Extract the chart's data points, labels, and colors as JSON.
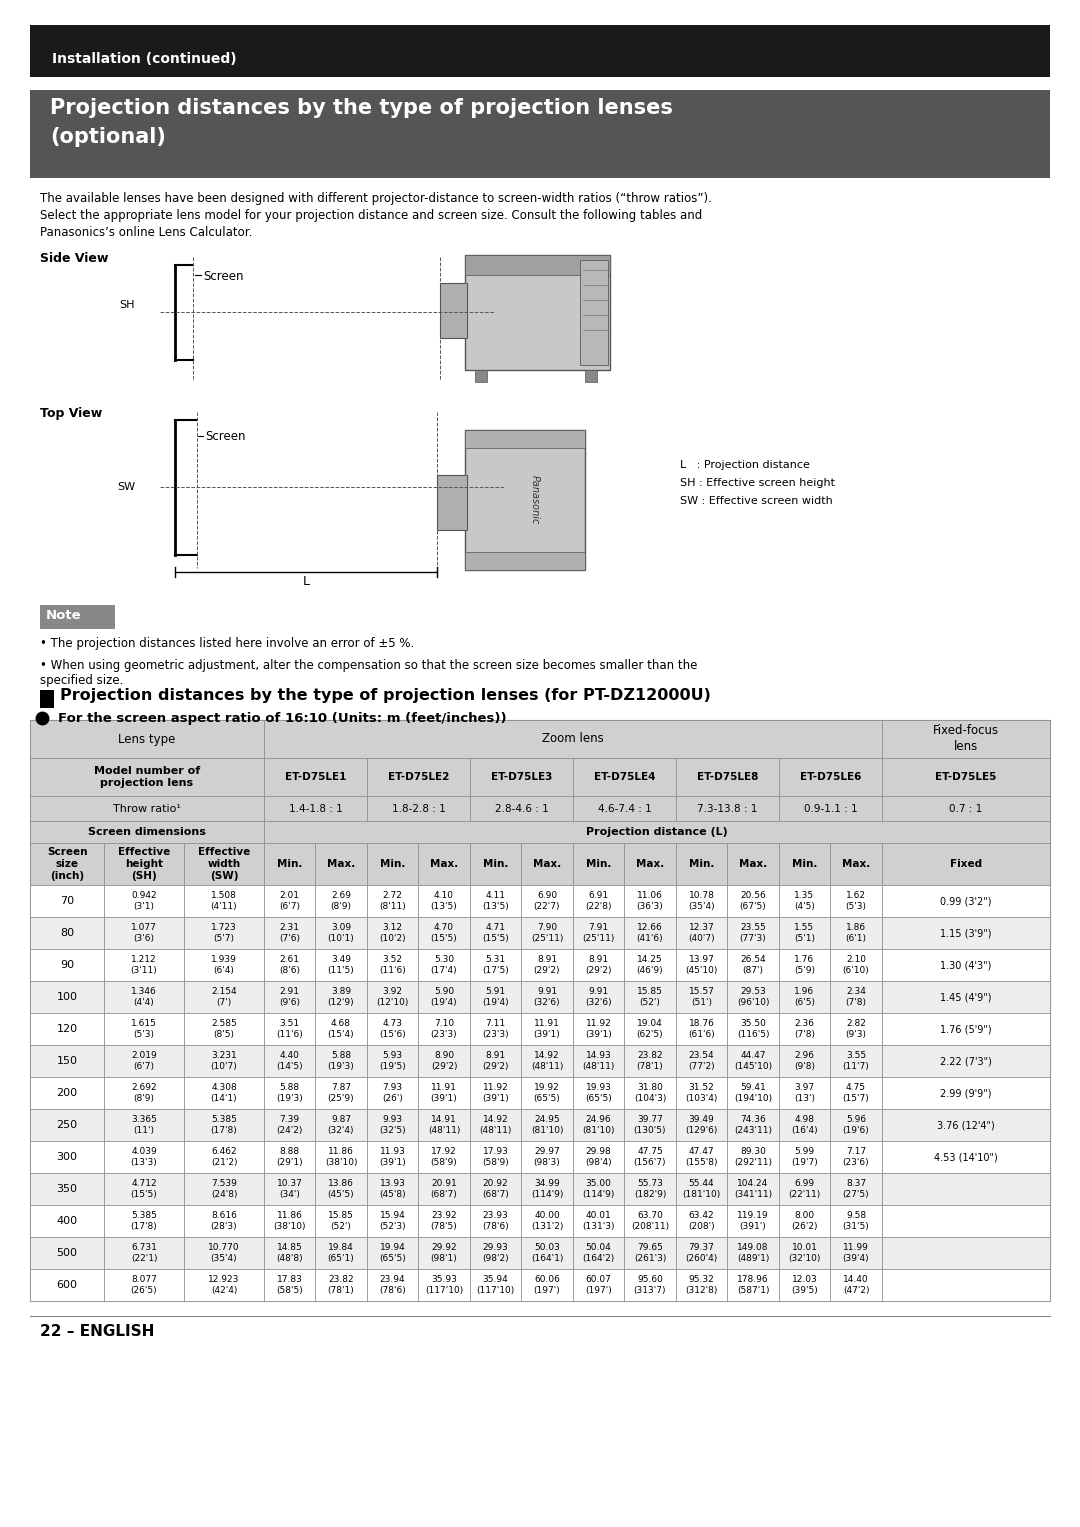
{
  "page_title": "Installation (continued)",
  "section_title_line1": "Projection distances by the type of projection lenses",
  "section_title_line2": "(optional)",
  "intro_text": "The available lenses have been designed with different projector-distance to screen-width ratios (“throw ratios”).\nSelect the appropriate lens model for your projection distance and screen size. Consult the following tables and\nPanasonics’s online Lens Calculator.",
  "side_view_label": "Side View",
  "top_view_label": "Top View",
  "legend_lines": [
    "L   : Projection distance",
    "SH : Effective screen height",
    "SW : Effective screen width"
  ],
  "note_title": "Note",
  "note_bullets": [
    "The projection distances listed here involve an error of ±5 %.",
    "When using geometric adjustment, alter the compensation so that the screen size becomes smaller than the\nspecified size."
  ],
  "table_section_title": "Projection distances by the type of projection lenses (for PT-DZ12000U)",
  "table_subtitle": "For the screen aspect ratio of 16:10 (Units: m (feet/inches))",
  "col_headers_row2": [
    "ET-D75LE1",
    "ET-D75LE2",
    "ET-D75LE3",
    "ET-D75LE4",
    "ET-D75LE8",
    "ET-D75LE6",
    "ET-D75LE5"
  ],
  "col_headers_row3": [
    "1.4-1.8 : 1",
    "1.8-2.8 : 1",
    "2.8-4.6 : 1",
    "4.6-7.4 : 1",
    "7.3-13.8 : 1",
    "0.9-1.1 : 1",
    "0.7 : 1"
  ],
  "table_data": [
    [
      "70",
      "0.942\n(3'1)",
      "1.508\n(4'11)",
      "2.01\n(6'7)",
      "2.69\n(8'9)",
      "2.72\n(8'11)",
      "4.10\n(13'5)",
      "4.11\n(13'5)",
      "6.90\n(22'7)",
      "6.91\n(22'8)",
      "11.06\n(36'3)",
      "10.78\n(35'4)",
      "20.56\n(67'5)",
      "1.35\n(4'5)",
      "1.62\n(5'3)",
      "0.99 (3'2\")"
    ],
    [
      "80",
      "1.077\n(3'6)",
      "1.723\n(5'7)",
      "2.31\n(7'6)",
      "3.09\n(10'1)",
      "3.12\n(10'2)",
      "4.70\n(15'5)",
      "4.71\n(15'5)",
      "7.90\n(25'11)",
      "7.91\n(25'11)",
      "12.66\n(41'6)",
      "12.37\n(40'7)",
      "23.55\n(77'3)",
      "1.55\n(5'1)",
      "1.86\n(6'1)",
      "1.15 (3'9\")"
    ],
    [
      "90",
      "1.212\n(3'11)",
      "1.939\n(6'4)",
      "2.61\n(8'6)",
      "3.49\n(11'5)",
      "3.52\n(11'6)",
      "5.30\n(17'4)",
      "5.31\n(17'5)",
      "8.91\n(29'2)",
      "8.91\n(29'2)",
      "14.25\n(46'9)",
      "13.97\n(45'10)",
      "26.54\n(87')",
      "1.76\n(5'9)",
      "2.10\n(6'10)",
      "1.30 (4'3\")"
    ],
    [
      "100",
      "1.346\n(4'4)",
      "2.154\n(7')",
      "2.91\n(9'6)",
      "3.89\n(12'9)",
      "3.92\n(12'10)",
      "5.90\n(19'4)",
      "5.91\n(19'4)",
      "9.91\n(32'6)",
      "9.91\n(32'6)",
      "15.85\n(52')",
      "15.57\n(51')",
      "29.53\n(96'10)",
      "1.96\n(6'5)",
      "2.34\n(7'8)",
      "1.45 (4'9\")"
    ],
    [
      "120",
      "1.615\n(5'3)",
      "2.585\n(8'5)",
      "3.51\n(11'6)",
      "4.68\n(15'4)",
      "4.73\n(15'6)",
      "7.10\n(23'3)",
      "7.11\n(23'3)",
      "11.91\n(39'1)",
      "11.92\n(39'1)",
      "19.04\n(62'5)",
      "18.76\n(61'6)",
      "35.50\n(116'5)",
      "2.36\n(7'8)",
      "2.82\n(9'3)",
      "1.76 (5'9\")"
    ],
    [
      "150",
      "2.019\n(6'7)",
      "3.231\n(10'7)",
      "4.40\n(14'5)",
      "5.88\n(19'3)",
      "5.93\n(19'5)",
      "8.90\n(29'2)",
      "8.91\n(29'2)",
      "14.92\n(48'11)",
      "14.93\n(48'11)",
      "23.82\n(78'1)",
      "23.54\n(77'2)",
      "44.47\n(145'10)",
      "2.96\n(9'8)",
      "3.55\n(11'7)",
      "2.22 (7'3\")"
    ],
    [
      "200",
      "2.692\n(8'9)",
      "4.308\n(14'1)",
      "5.88\n(19'3)",
      "7.87\n(25'9)",
      "7.93\n(26')",
      "11.91\n(39'1)",
      "11.92\n(39'1)",
      "19.92\n(65'5)",
      "19.93\n(65'5)",
      "31.80\n(104'3)",
      "31.52\n(103'4)",
      "59.41\n(194'10)",
      "3.97\n(13')",
      "4.75\n(15'7)",
      "2.99 (9'9\")"
    ],
    [
      "250",
      "3.365\n(11')",
      "5.385\n(17'8)",
      "7.39\n(24'2)",
      "9.87\n(32'4)",
      "9.93\n(32'5)",
      "14.91\n(48'11)",
      "14.92\n(48'11)",
      "24.95\n(81'10)",
      "24.96\n(81'10)",
      "39.77\n(130'5)",
      "39.49\n(129'6)",
      "74.36\n(243'11)",
      "4.98\n(16'4)",
      "5.96\n(19'6)",
      "3.76 (12'4\")"
    ],
    [
      "300",
      "4.039\n(13'3)",
      "6.462\n(21'2)",
      "8.88\n(29'1)",
      "11.86\n(38'10)",
      "11.93\n(39'1)",
      "17.92\n(58'9)",
      "17.93\n(58'9)",
      "29.97\n(98'3)",
      "29.98\n(98'4)",
      "47.75\n(156'7)",
      "47.47\n(155'8)",
      "89.30\n(292'11)",
      "5.99\n(19'7)",
      "7.17\n(23'6)",
      "4.53 (14'10\")"
    ],
    [
      "350",
      "4.712\n(15'5)",
      "7.539\n(24'8)",
      "10.37\n(34')",
      "13.86\n(45'5)",
      "13.93\n(45'8)",
      "20.91\n(68'7)",
      "20.92\n(68'7)",
      "34.99\n(114'9)",
      "35.00\n(114'9)",
      "55.73\n(182'9)",
      "55.44\n(181'10)",
      "104.24\n(341'11)",
      "6.99\n(22'11)",
      "8.37\n(27'5)",
      ""
    ],
    [
      "400",
      "5.385\n(17'8)",
      "8.616\n(28'3)",
      "11.86\n(38'10)",
      "15.85\n(52')",
      "15.94\n(52'3)",
      "23.92\n(78'5)",
      "23.93\n(78'6)",
      "40.00\n(131'2)",
      "40.01\n(131'3)",
      "63.70\n(208'11)",
      "63.42\n(208')",
      "119.19\n(391')",
      "8.00\n(26'2)",
      "9.58\n(31'5)",
      ""
    ],
    [
      "500",
      "6.731\n(22'1)",
      "10.770\n(35'4)",
      "14.85\n(48'8)",
      "19.84\n(65'1)",
      "19.94\n(65'5)",
      "29.92\n(98'1)",
      "29.93\n(98'2)",
      "50.03\n(164'1)",
      "50.04\n(164'2)",
      "79.65\n(261'3)",
      "79.37\n(260'4)",
      "149.08\n(489'1)",
      "10.01\n(32'10)",
      "11.99\n(39'4)",
      ""
    ],
    [
      "600",
      "8.077\n(26'5)",
      "12.923\n(42'4)",
      "17.83\n(58'5)",
      "23.82\n(78'1)",
      "23.94\n(78'6)",
      "35.93\n(117'10)",
      "35.94\n(117'10)",
      "60.06\n(197')",
      "60.07\n(197')",
      "95.60\n(313'7)",
      "95.32\n(312'8)",
      "178.96\n(587'1)",
      "12.03\n(39'5)",
      "14.40\n(47'2)",
      ""
    ]
  ],
  "footer_text": "22 – ENGLISH",
  "bg_color": "#ffffff",
  "header_bg": "#1a1a1a",
  "section_title_bg": "#555555",
  "table_header_bg": "#d0d0d0",
  "table_alt_row": "#eeeeee",
  "note_bg": "#888888"
}
